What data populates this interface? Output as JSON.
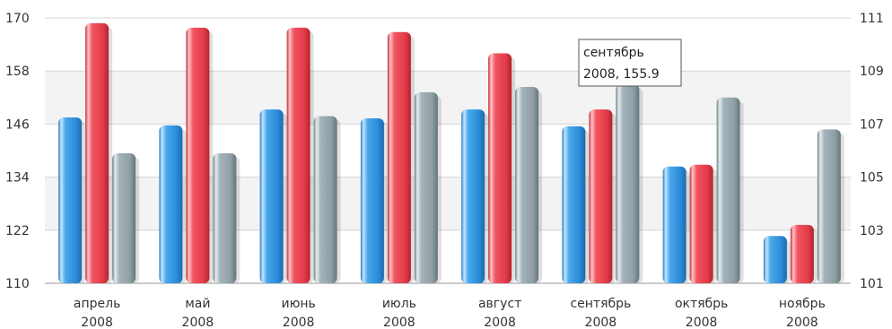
{
  "chart_data": {
    "type": "bar",
    "categories": [
      [
        "апрель",
        "2008"
      ],
      [
        "май",
        "2008"
      ],
      [
        "июнь",
        "2008"
      ],
      [
        "июль",
        "2008"
      ],
      [
        "август",
        "2008"
      ],
      [
        "сентябрь",
        "2008"
      ],
      [
        "октябрь",
        "2008"
      ],
      [
        "ноябрь",
        "2008"
      ]
    ],
    "series": [
      {
        "axis": "left",
        "color": "#3a9be0",
        "values": [
          147.5,
          145.7,
          149.3,
          147.3,
          149.3,
          145.5,
          136.4,
          120.7
        ]
      },
      {
        "axis": "left",
        "color": "#e8434f",
        "values": [
          168.8,
          167.8,
          167.8,
          166.8,
          162.0,
          149.3,
          136.8,
          123.2
        ]
      },
      {
        "axis": "right",
        "color": "#8fa0a6",
        "values": [
          105.9,
          105.9,
          107.3,
          108.2,
          108.4,
          108.5,
          108.0,
          106.8
        ]
      }
    ],
    "y_left": {
      "ylim": [
        110,
        170
      ],
      "ticks": [
        "110",
        "122",
        "134",
        "146",
        "158",
        "170"
      ]
    },
    "y_right": {
      "ylim": [
        101,
        111
      ],
      "ticks": [
        "101",
        "103",
        "105",
        "107",
        "109",
        "111"
      ]
    },
    "grid": true,
    "band_color": "#f3f3f3",
    "tooltip": {
      "line1": "сентябрь",
      "line2": "2008, 155.9"
    }
  }
}
